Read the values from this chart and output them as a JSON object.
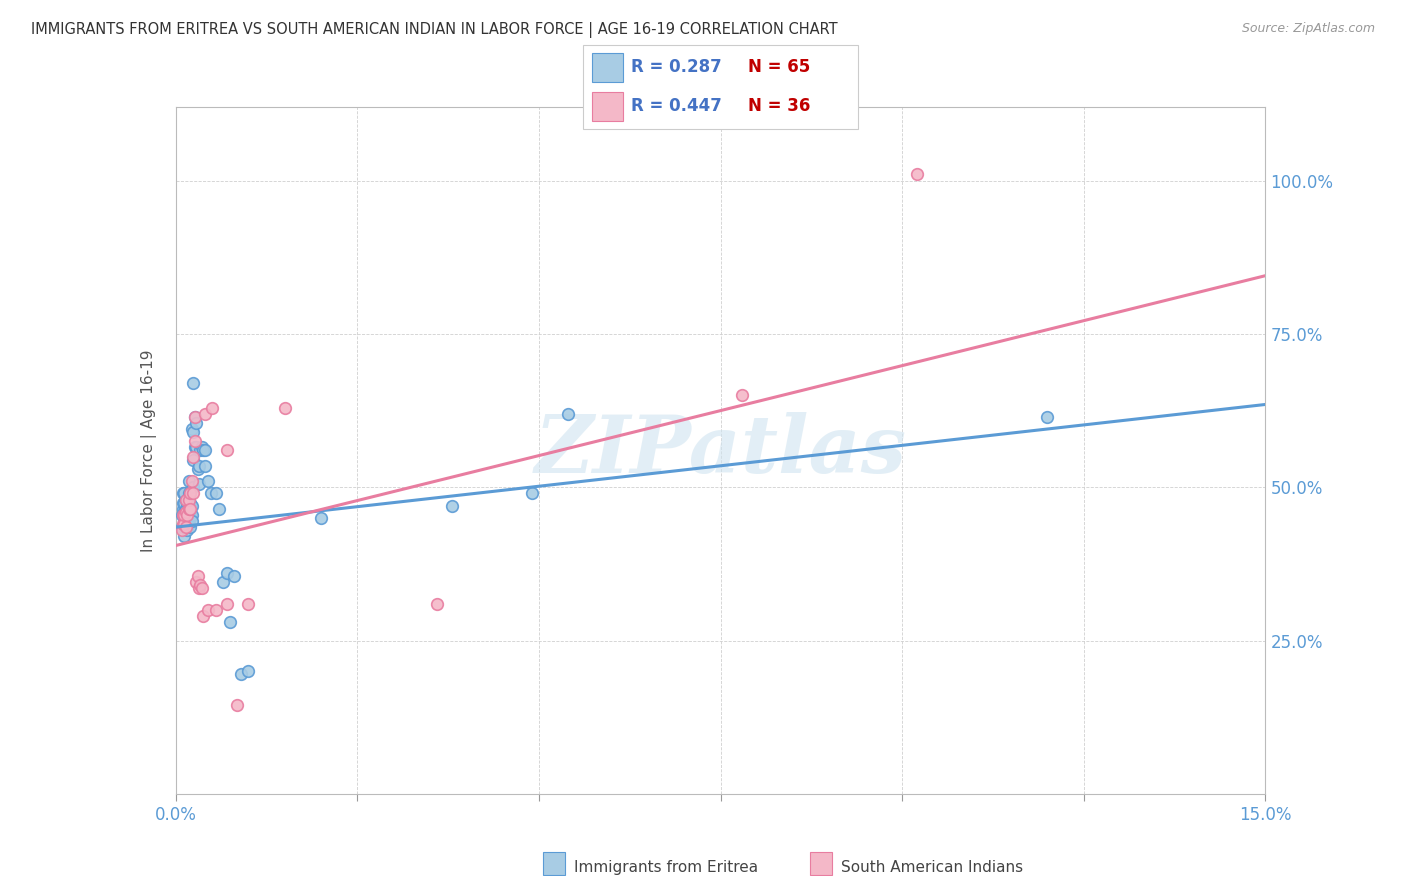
{
  "title": "IMMIGRANTS FROM ERITREA VS SOUTH AMERICAN INDIAN IN LABOR FORCE | AGE 16-19 CORRELATION CHART",
  "source": "Source: ZipAtlas.com",
  "ylabel": "In Labor Force | Age 16-19",
  "xlim": [
    0.0,
    0.15
  ],
  "ylim": [
    0.0,
    1.1
  ],
  "yticks": [
    0.0,
    0.25,
    0.5,
    0.75,
    1.0
  ],
  "ytick_labels": [
    "",
    "25.0%",
    "50.0%",
    "75.0%",
    "100.0%"
  ],
  "xticks": [
    0.0,
    0.025,
    0.05,
    0.075,
    0.1,
    0.125,
    0.15
  ],
  "xtick_labels": [
    "0.0%",
    "",
    "",
    "",
    "",
    "",
    "15.0%"
  ],
  "legend_r1": "R = 0.287",
  "legend_n1": "N = 65",
  "legend_r2": "R = 0.447",
  "legend_n2": "N = 36",
  "blue_color": "#a8cce4",
  "pink_color": "#f4b8c8",
  "line_blue": "#5b9bd5",
  "line_pink": "#e87da0",
  "watermark": "ZIPatlas",
  "axis_label_color": "#5b9bd5",
  "blue_scatter": [
    [
      0.0008,
      0.435
    ],
    [
      0.0008,
      0.455
    ],
    [
      0.001,
      0.465
    ],
    [
      0.001,
      0.475
    ],
    [
      0.001,
      0.49
    ],
    [
      0.0012,
      0.42
    ],
    [
      0.0012,
      0.435
    ],
    [
      0.0012,
      0.445
    ],
    [
      0.0012,
      0.46
    ],
    [
      0.0012,
      0.475
    ],
    [
      0.0012,
      0.49
    ],
    [
      0.0014,
      0.435
    ],
    [
      0.0014,
      0.445
    ],
    [
      0.0014,
      0.455
    ],
    [
      0.0014,
      0.465
    ],
    [
      0.0014,
      0.48
    ],
    [
      0.0016,
      0.43
    ],
    [
      0.0016,
      0.445
    ],
    [
      0.0016,
      0.46
    ],
    [
      0.0016,
      0.475
    ],
    [
      0.0018,
      0.44
    ],
    [
      0.0018,
      0.455
    ],
    [
      0.0018,
      0.47
    ],
    [
      0.0018,
      0.49
    ],
    [
      0.0018,
      0.51
    ],
    [
      0.002,
      0.435
    ],
    [
      0.002,
      0.45
    ],
    [
      0.002,
      0.46
    ],
    [
      0.002,
      0.475
    ],
    [
      0.002,
      0.49
    ],
    [
      0.0022,
      0.595
    ],
    [
      0.0022,
      0.47
    ],
    [
      0.0022,
      0.455
    ],
    [
      0.0022,
      0.445
    ],
    [
      0.0024,
      0.67
    ],
    [
      0.0024,
      0.59
    ],
    [
      0.0024,
      0.545
    ],
    [
      0.0024,
      0.5
    ],
    [
      0.0026,
      0.615
    ],
    [
      0.0026,
      0.565
    ],
    [
      0.0028,
      0.605
    ],
    [
      0.0028,
      0.565
    ],
    [
      0.003,
      0.53
    ],
    [
      0.0032,
      0.535
    ],
    [
      0.0032,
      0.505
    ],
    [
      0.0034,
      0.56
    ],
    [
      0.0036,
      0.565
    ],
    [
      0.0038,
      0.56
    ],
    [
      0.004,
      0.56
    ],
    [
      0.004,
      0.535
    ],
    [
      0.0045,
      0.51
    ],
    [
      0.0048,
      0.49
    ],
    [
      0.0055,
      0.49
    ],
    [
      0.006,
      0.465
    ],
    [
      0.0065,
      0.345
    ],
    [
      0.007,
      0.36
    ],
    [
      0.0075,
      0.28
    ],
    [
      0.008,
      0.355
    ],
    [
      0.009,
      0.195
    ],
    [
      0.01,
      0.2
    ],
    [
      0.02,
      0.45
    ],
    [
      0.038,
      0.47
    ],
    [
      0.049,
      0.49
    ],
    [
      0.054,
      0.62
    ],
    [
      0.12,
      0.615
    ]
  ],
  "pink_scatter": [
    [
      0.0008,
      0.43
    ],
    [
      0.001,
      0.44
    ],
    [
      0.001,
      0.455
    ],
    [
      0.0012,
      0.44
    ],
    [
      0.0012,
      0.455
    ],
    [
      0.0014,
      0.435
    ],
    [
      0.0014,
      0.46
    ],
    [
      0.0014,
      0.48
    ],
    [
      0.0016,
      0.455
    ],
    [
      0.0018,
      0.465
    ],
    [
      0.0018,
      0.48
    ],
    [
      0.002,
      0.465
    ],
    [
      0.002,
      0.49
    ],
    [
      0.0022,
      0.51
    ],
    [
      0.0024,
      0.49
    ],
    [
      0.0024,
      0.55
    ],
    [
      0.0026,
      0.615
    ],
    [
      0.0026,
      0.575
    ],
    [
      0.0028,
      0.345
    ],
    [
      0.003,
      0.355
    ],
    [
      0.0032,
      0.335
    ],
    [
      0.0034,
      0.34
    ],
    [
      0.0036,
      0.335
    ],
    [
      0.0038,
      0.29
    ],
    [
      0.004,
      0.62
    ],
    [
      0.0045,
      0.3
    ],
    [
      0.005,
      0.63
    ],
    [
      0.0055,
      0.3
    ],
    [
      0.007,
      0.56
    ],
    [
      0.007,
      0.31
    ],
    [
      0.0085,
      0.145
    ],
    [
      0.01,
      0.31
    ],
    [
      0.015,
      0.63
    ],
    [
      0.036,
      0.31
    ],
    [
      0.078,
      0.65
    ],
    [
      0.102,
      1.01
    ]
  ],
  "blue_line_x": [
    0.0,
    0.15
  ],
  "blue_line_y": [
    0.435,
    0.635
  ],
  "pink_line_x": [
    0.0,
    0.15
  ],
  "pink_line_y": [
    0.405,
    0.845
  ]
}
